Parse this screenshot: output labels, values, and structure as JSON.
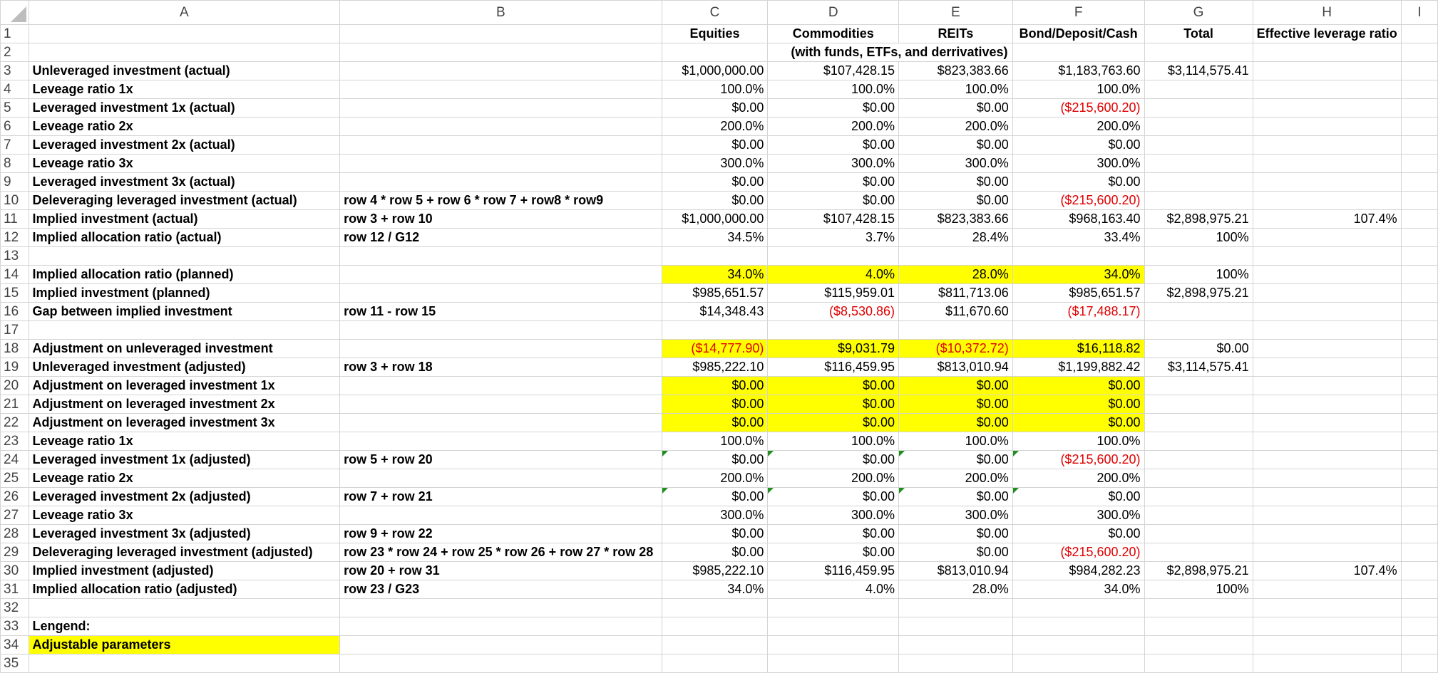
{
  "columns": [
    "A",
    "B",
    "C",
    "D",
    "E",
    "F",
    "G",
    "H",
    "I"
  ],
  "header_row1": {
    "C": "Equities",
    "D": "Commodities",
    "E": "REITs",
    "F": "Bond/Deposit/Cash",
    "G": "Total",
    "H": "Effective leverage ratio"
  },
  "header_row2": {
    "D": "(with funds, ETFs, and derrivatives)"
  },
  "rows": {
    "r3": {
      "A": "Unleveraged investment (actual)",
      "B": "",
      "C": "$1,000,000.00",
      "D": "$107,428.15",
      "E": "$823,383.66",
      "F": "$1,183,763.60",
      "G": "$3,114,575.41",
      "H": ""
    },
    "r4": {
      "A": "Leveage ratio 1x",
      "B": "",
      "C": "100.0%",
      "D": "100.0%",
      "E": "100.0%",
      "F": "100.0%",
      "G": "",
      "H": ""
    },
    "r5": {
      "A": "Leveraged investment 1x (actual)",
      "B": "",
      "C": "$0.00",
      "D": "$0.00",
      "E": "$0.00",
      "F": "($215,600.20)",
      "G": "",
      "H": ""
    },
    "r6": {
      "A": "Leveage ratio 2x",
      "B": "",
      "C": "200.0%",
      "D": "200.0%",
      "E": "200.0%",
      "F": "200.0%",
      "G": "",
      "H": ""
    },
    "r7": {
      "A": "Leveraged investment 2x (actual)",
      "B": "",
      "C": "$0.00",
      "D": "$0.00",
      "E": "$0.00",
      "F": "$0.00",
      "G": "",
      "H": ""
    },
    "r8": {
      "A": "Leveage ratio 3x",
      "B": "",
      "C": "300.0%",
      "D": "300.0%",
      "E": "300.0%",
      "F": "300.0%",
      "G": "",
      "H": ""
    },
    "r9": {
      "A": "Leveraged investment 3x (actual)",
      "B": "",
      "C": "$0.00",
      "D": "$0.00",
      "E": "$0.00",
      "F": "$0.00",
      "G": "",
      "H": ""
    },
    "r10": {
      "A": "Deleveraging leveraged investment (actual)",
      "B": "row 4 * row 5 + row 6 * row 7 + row8 * row9",
      "C": "$0.00",
      "D": "$0.00",
      "E": "$0.00",
      "F": "($215,600.20)",
      "G": "",
      "H": ""
    },
    "r11": {
      "A": "Implied investment (actual)",
      "B": "row 3 + row 10",
      "C": "$1,000,000.00",
      "D": "$107,428.15",
      "E": "$823,383.66",
      "F": "$968,163.40",
      "G": "$2,898,975.21",
      "H": "107.4%"
    },
    "r12": {
      "A": "Implied allocation ratio (actual)",
      "B": "row 12 / G12",
      "C": "34.5%",
      "D": "3.7%",
      "E": "28.4%",
      "F": "33.4%",
      "G": "100%",
      "H": ""
    },
    "r14": {
      "A": "Implied allocation ratio (planned)",
      "B": "",
      "C": "34.0%",
      "D": "4.0%",
      "E": "28.0%",
      "F": "34.0%",
      "G": "100%",
      "H": ""
    },
    "r15": {
      "A": "Implied investment (planned)",
      "B": "",
      "C": "$985,651.57",
      "D": "$115,959.01",
      "E": "$811,713.06",
      "F": "$985,651.57",
      "G": "$2,898,975.21",
      "H": ""
    },
    "r16": {
      "A": "Gap between implied investment",
      "B": "row 11 - row 15",
      "C": "$14,348.43",
      "D": "($8,530.86)",
      "E": "$11,670.60",
      "F": "($17,488.17)",
      "G": "",
      "H": ""
    },
    "r18": {
      "A": "Adjustment on unleveraged investment",
      "B": "",
      "C": "($14,777.90)",
      "D": "$9,031.79",
      "E": "($10,372.72)",
      "F": "$16,118.82",
      "G": "$0.00",
      "H": ""
    },
    "r19": {
      "A": "Unleveraged investment (adjusted)",
      "B": "row 3 + row 18",
      "C": "$985,222.10",
      "D": "$116,459.95",
      "E": "$813,010.94",
      "F": "$1,199,882.42",
      "G": "$3,114,575.41",
      "H": ""
    },
    "r20": {
      "A": "Adjustment on leveraged investment 1x",
      "B": "",
      "C": "$0.00",
      "D": "$0.00",
      "E": "$0.00",
      "F": "$0.00",
      "G": "",
      "H": ""
    },
    "r21": {
      "A": "Adjustment on leveraged investment 2x",
      "B": "",
      "C": "$0.00",
      "D": "$0.00",
      "E": "$0.00",
      "F": "$0.00",
      "G": "",
      "H": ""
    },
    "r22": {
      "A": "Adjustment on leveraged investment 3x",
      "B": "",
      "C": "$0.00",
      "D": "$0.00",
      "E": "$0.00",
      "F": "$0.00",
      "G": "",
      "H": ""
    },
    "r23": {
      "A": "Leveage ratio 1x",
      "B": "",
      "C": "100.0%",
      "D": "100.0%",
      "E": "100.0%",
      "F": "100.0%",
      "G": "",
      "H": ""
    },
    "r24": {
      "A": "Leveraged investment 1x (adjusted)",
      "B": "row 5 + row 20",
      "C": "$0.00",
      "D": "$0.00",
      "E": "$0.00",
      "F": "($215,600.20)",
      "G": "",
      "H": ""
    },
    "r25": {
      "A": "Leveage ratio 2x",
      "B": "",
      "C": "200.0%",
      "D": "200.0%",
      "E": "200.0%",
      "F": "200.0%",
      "G": "",
      "H": ""
    },
    "r26": {
      "A": "Leveraged investment 2x (adjusted)",
      "B": "row 7 + row 21",
      "C": "$0.00",
      "D": "$0.00",
      "E": "$0.00",
      "F": "$0.00",
      "G": "",
      "H": ""
    },
    "r27": {
      "A": "Leveage ratio 3x",
      "B": "",
      "C": "300.0%",
      "D": "300.0%",
      "E": "300.0%",
      "F": "300.0%",
      "G": "",
      "H": ""
    },
    "r28": {
      "A": "Leveraged investment 3x (adjusted)",
      "B": "row 9 + row 22",
      "C": "$0.00",
      "D": "$0.00",
      "E": "$0.00",
      "F": "$0.00",
      "G": "",
      "H": ""
    },
    "r29": {
      "A": "Deleveraging leveraged investment (adjusted)",
      "B": "row 23 * row 24 + row 25 * row 26 + row 27 * row 28",
      "C": "$0.00",
      "D": "$0.00",
      "E": "$0.00",
      "F": "($215,600.20)",
      "G": "",
      "H": ""
    },
    "r30": {
      "A": "Implied investment (adjusted)",
      "B": "row 20 + row 31",
      "C": "$985,222.10",
      "D": "$116,459.95",
      "E": "$813,010.94",
      "F": "$984,282.23",
      "G": "$2,898,975.21",
      "H": "107.4%"
    },
    "r31": {
      "A": "Implied allocation ratio (adjusted)",
      "B": "row 23 / G23",
      "C": "34.0%",
      "D": "4.0%",
      "E": "28.0%",
      "F": "34.0%",
      "G": "100%",
      "H": ""
    },
    "r33": {
      "A": "Lengend:"
    },
    "r34": {
      "A": "Adjustable parameters"
    }
  },
  "colors": {
    "highlight": "#ffff00",
    "negative": "#e00000",
    "comment_marker": "#1e8e1e"
  }
}
